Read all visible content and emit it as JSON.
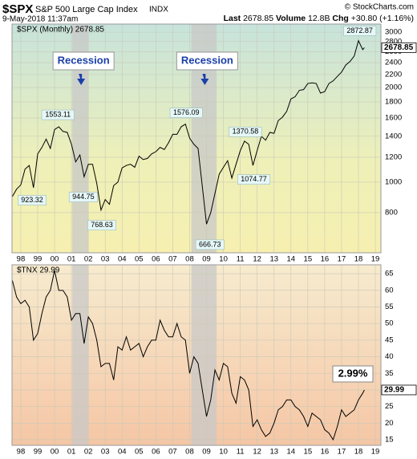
{
  "header": {
    "symbol": "$SPX",
    "name": "S&P 500 Large Cap Index",
    "exchange": "INDX",
    "date": "9-May-2018 11:37am",
    "source": "© StockCharts.com",
    "quote": [
      {
        "label": "Last",
        "value": "2678.85"
      },
      {
        "label": "Volume",
        "value": "12.8B"
      },
      {
        "label": "Chg",
        "value": "+30.80 (+1.16%)"
      }
    ]
  },
  "chart_data": [
    {
      "type": "line",
      "log_scale": true,
      "grid": true,
      "series": [
        {
          "name": "$SPX (Monthly) 2678.85",
          "color": "#000000",
          "values": [
            900,
            950,
            980,
            1100,
            1130,
            960,
            1230,
            1290,
            1370,
            1280,
            1470,
            1500,
            1450,
            1440,
            1320,
            1160,
            1220,
            1040,
            1140,
            1140,
            990,
            815,
            880,
            850,
            975,
            1000,
            1110,
            1130,
            1140,
            1115,
            1210,
            1180,
            1190,
            1230,
            1250,
            1290,
            1270,
            1335,
            1420,
            1420,
            1500,
            1530,
            1380,
            1320,
            1280,
            970,
            735,
            800,
            920,
            1060,
            1115,
            1170,
            1030,
            1140,
            1260,
            1350,
            1320,
            1130,
            1260,
            1400,
            1360,
            1440,
            1430,
            1570,
            1610,
            1680,
            1840,
            1870,
            1960,
            1970,
            2060,
            2070,
            2060,
            1920,
            1940,
            2060,
            2100,
            2170,
            2240,
            2360,
            2420,
            2520,
            2820,
            2640,
            2679
          ]
        }
      ],
      "x": [
        1997.5,
        1997.75,
        1998,
        1998.25,
        1998.5,
        1998.75,
        1999,
        1999.25,
        1999.5,
        1999.75,
        2000,
        2000.25,
        2000.5,
        2000.75,
        2001,
        2001.25,
        2001.5,
        2001.75,
        2002,
        2002.25,
        2002.5,
        2002.75,
        2003,
        2003.25,
        2003.5,
        2003.75,
        2004,
        2004.25,
        2004.5,
        2004.75,
        2005,
        2005.25,
        2005.5,
        2005.75,
        2006,
        2006.25,
        2006.5,
        2006.75,
        2007,
        2007.25,
        2007.5,
        2007.75,
        2008,
        2008.25,
        2008.5,
        2008.75,
        2009,
        2009.25,
        2009.5,
        2009.75,
        2010,
        2010.25,
        2010.5,
        2010.75,
        2011,
        2011.25,
        2011.5,
        2011.75,
        2012,
        2012.25,
        2012.5,
        2012.75,
        2013,
        2013.25,
        2013.5,
        2013.75,
        2014,
        2014.25,
        2014.5,
        2014.75,
        2015,
        2015.25,
        2015.5,
        2015.75,
        2016,
        2016.25,
        2016.5,
        2016.75,
        2017,
        2017.25,
        2017.5,
        2017.75,
        2018,
        2018.25,
        2018.35
      ],
      "xlim": [
        1997.48,
        2019.33
      ],
      "xticks": [
        {
          "value": 1998,
          "label": "98"
        },
        {
          "value": 1999,
          "label": "99"
        },
        {
          "value": 2000,
          "label": "00"
        },
        {
          "value": 2001,
          "label": "01"
        },
        {
          "value": 2002,
          "label": "02"
        },
        {
          "value": 2003,
          "label": "03"
        },
        {
          "value": 2004,
          "label": "04"
        },
        {
          "value": 2005,
          "label": "05"
        },
        {
          "value": 2006,
          "label": "06"
        },
        {
          "value": 2007,
          "label": "07"
        },
        {
          "value": 2008,
          "label": "08"
        },
        {
          "value": 2009,
          "label": "09"
        },
        {
          "value": 2010,
          "label": "10"
        },
        {
          "value": 2011,
          "label": "11"
        },
        {
          "value": 2012,
          "label": "12"
        },
        {
          "value": 2013,
          "label": "13"
        },
        {
          "value": 2014,
          "label": "14"
        },
        {
          "value": 2015,
          "label": "15"
        },
        {
          "value": 2016,
          "label": "16"
        },
        {
          "value": 2017,
          "label": "17"
        },
        {
          "value": 2018,
          "label": "18"
        },
        {
          "value": 2019,
          "label": "19"
        }
      ],
      "ylim": [
        596,
        3184
      ],
      "yticks": [
        800,
        1000,
        1200,
        1400,
        1600,
        1800,
        2000,
        2200,
        2400,
        2600,
        2800,
        3000
      ],
      "last_value": 2678.85,
      "recessions": [
        {
          "label": "Recession",
          "from": 2001.05,
          "to": 2002.0
        },
        {
          "label": "Recession",
          "from": 2008.1,
          "to": 2009.6
        }
      ],
      "annotations": [
        {
          "label": "923.32",
          "x": 1998.67,
          "y": 923.32,
          "side": "below"
        },
        {
          "label": "1553.11",
          "x": 2000.2,
          "y": 1553.11,
          "side": "above"
        },
        {
          "label": "944.75",
          "x": 2001.7,
          "y": 944.75,
          "side": "below"
        },
        {
          "label": "768.63",
          "x": 2002.8,
          "y": 768.63,
          "side": "below"
        },
        {
          "label": "1576.09",
          "x": 2007.8,
          "y": 1576.09,
          "side": "above"
        },
        {
          "label": "666.73",
          "x": 2009.2,
          "y": 666.73,
          "side": "below"
        },
        {
          "label": "1370.58",
          "x": 2011.3,
          "y": 1370.58,
          "side": "above"
        },
        {
          "label": "1074.77",
          "x": 2011.8,
          "y": 1074.77,
          "side": "below"
        },
        {
          "label": "2872.87",
          "x": 2018.08,
          "y": 2872.87,
          "side": "above"
        }
      ]
    },
    {
      "type": "line",
      "log_scale": false,
      "grid": true,
      "series": [
        {
          "name": "$TNX 29.99",
          "color": "#000000",
          "values": [
            63,
            58,
            56,
            57,
            55,
            45,
            47,
            53,
            58,
            60,
            66,
            60,
            60,
            58,
            51,
            53,
            53,
            44,
            52,
            50,
            45,
            37,
            38,
            38,
            33,
            43,
            42,
            46,
            42,
            43,
            44,
            40,
            43,
            45,
            45,
            51,
            48,
            46,
            46,
            50,
            46,
            45,
            35,
            40,
            38,
            30,
            22,
            27,
            36,
            33,
            38,
            37,
            29,
            26,
            34,
            33,
            30,
            19,
            21,
            18,
            16,
            17,
            20,
            24,
            25,
            27,
            27,
            25,
            24,
            22,
            19,
            23,
            22,
            21,
            18,
            17,
            15,
            19,
            24,
            22,
            23,
            24,
            27,
            29,
            29.99
          ]
        }
      ],
      "x": [
        1997.5,
        1997.75,
        1998,
        1998.25,
        1998.5,
        1998.75,
        1999,
        1999.25,
        1999.5,
        1999.75,
        2000,
        2000.25,
        2000.5,
        2000.75,
        2001,
        2001.25,
        2001.5,
        2001.75,
        2002,
        2002.25,
        2002.5,
        2002.75,
        2003,
        2003.25,
        2003.5,
        2003.75,
        2004,
        2004.25,
        2004.5,
        2004.75,
        2005,
        2005.25,
        2005.5,
        2005.75,
        2006,
        2006.25,
        2006.5,
        2006.75,
        2007,
        2007.25,
        2007.5,
        2007.75,
        2008,
        2008.25,
        2008.5,
        2008.75,
        2009,
        2009.25,
        2009.5,
        2009.75,
        2010,
        2010.25,
        2010.5,
        2010.75,
        2011,
        2011.25,
        2011.5,
        2011.75,
        2012,
        2012.25,
        2012.5,
        2012.75,
        2013,
        2013.25,
        2013.5,
        2013.75,
        2014,
        2014.25,
        2014.5,
        2014.75,
        2015,
        2015.25,
        2015.5,
        2015.75,
        2016,
        2016.25,
        2016.5,
        2016.75,
        2017,
        2017.25,
        2017.5,
        2017.75,
        2018,
        2018.25,
        2018.35
      ],
      "xlim": [
        1997.48,
        2019.33
      ],
      "xticks": [
        {
          "value": 1998,
          "label": "98"
        },
        {
          "value": 1999,
          "label": "99"
        },
        {
          "value": 2000,
          "label": "00"
        },
        {
          "value": 2001,
          "label": "01"
        },
        {
          "value": 2002,
          "label": "02"
        },
        {
          "value": 2003,
          "label": "03"
        },
        {
          "value": 2004,
          "label": "04"
        },
        {
          "value": 2005,
          "label": "05"
        },
        {
          "value": 2006,
          "label": "06"
        },
        {
          "value": 2007,
          "label": "07"
        },
        {
          "value": 2008,
          "label": "08"
        },
        {
          "value": 2009,
          "label": "09"
        },
        {
          "value": 2010,
          "label": "10"
        },
        {
          "value": 2011,
          "label": "11"
        },
        {
          "value": 2012,
          "label": "12"
        },
        {
          "value": 2013,
          "label": "13"
        },
        {
          "value": 2014,
          "label": "14"
        },
        {
          "value": 2015,
          "label": "15"
        },
        {
          "value": 2016,
          "label": "16"
        },
        {
          "value": 2017,
          "label": "17"
        },
        {
          "value": 2018,
          "label": "18"
        },
        {
          "value": 2019,
          "label": "19"
        }
      ],
      "ylim": [
        13.3,
        67.7
      ],
      "yticks": [
        15,
        20,
        25,
        30,
        35,
        40,
        45,
        50,
        55,
        60,
        65
      ],
      "last_value": 29.99,
      "shading": [
        {
          "from": 2001.05,
          "to": 2002.0
        },
        {
          "from": 2008.1,
          "to": 2009.6
        }
      ],
      "callout": "2.99%"
    }
  ]
}
